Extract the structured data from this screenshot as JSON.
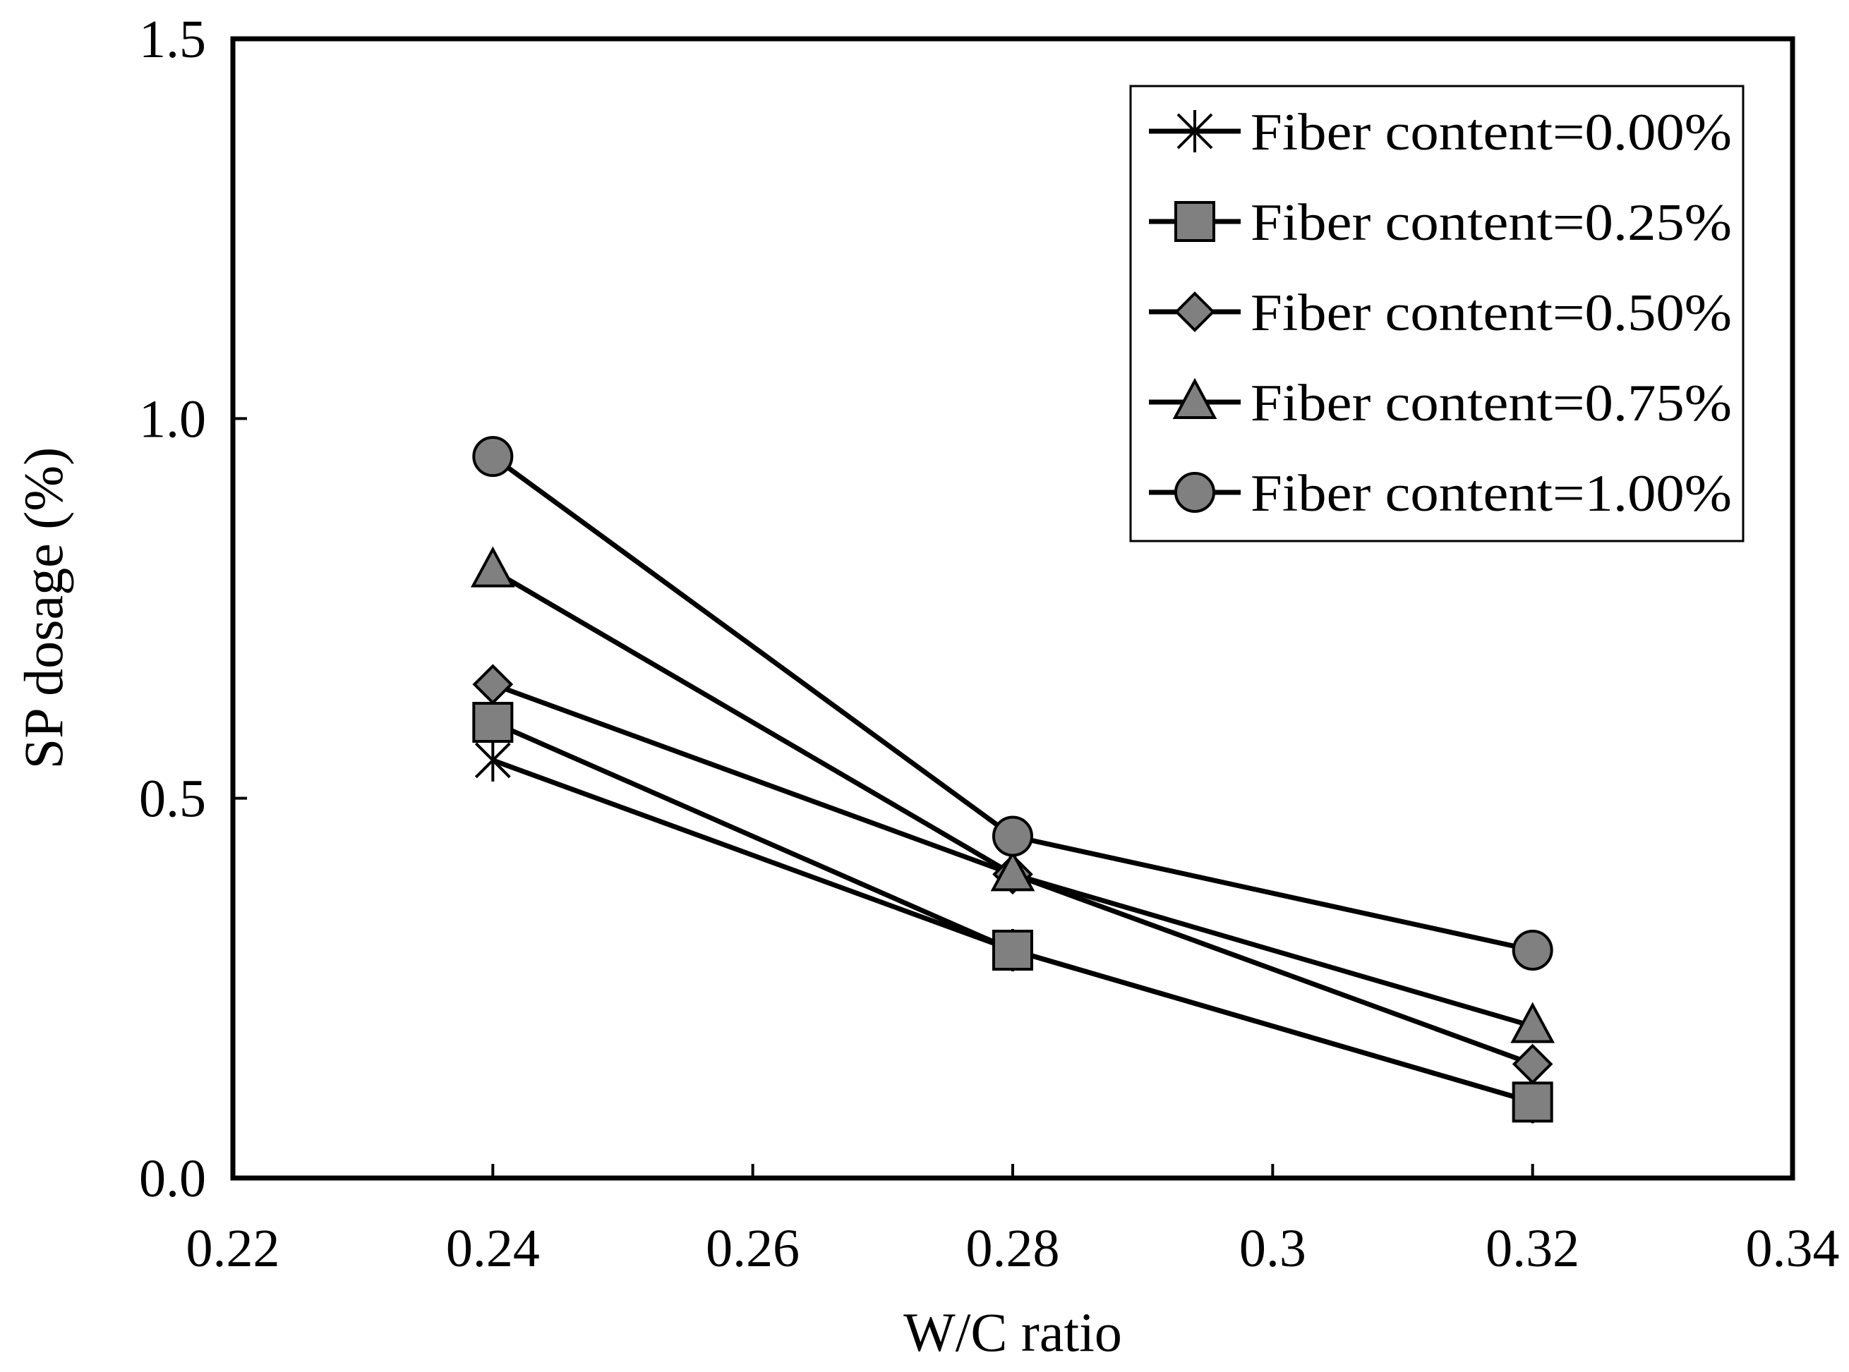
{
  "chart_data": {
    "type": "line",
    "title": "",
    "xlabel": "W/C ratio",
    "ylabel": "SP dosage (%)",
    "xlim": [
      0.22,
      0.34
    ],
    "ylim": [
      0.0,
      1.5
    ],
    "x_ticks": [
      0.22,
      0.24,
      0.26,
      0.28,
      0.3,
      0.32,
      0.34
    ],
    "x_tick_labels": [
      "0.22",
      "0.24",
      "0.26",
      "0.28",
      "0.3",
      "0.32",
      "0.34"
    ],
    "y_ticks": [
      0.0,
      0.5,
      1.0,
      1.5
    ],
    "y_tick_labels": [
      "0.0",
      "0.5",
      "1.0",
      "1.5"
    ],
    "grid": false,
    "legend_position": "top-right",
    "colors": {
      "line": "#000000",
      "marker_fill": "#808080",
      "background": "#ffffff"
    },
    "series": [
      {
        "name": "Fiber content=0.00%",
        "marker": "asterisk",
        "x": [
          0.24,
          0.28,
          0.32
        ],
        "y": [
          0.55,
          0.3,
          0.1
        ]
      },
      {
        "name": "Fiber content=0.25%",
        "marker": "square",
        "x": [
          0.24,
          0.28,
          0.32
        ],
        "y": [
          0.6,
          0.3,
          0.1
        ]
      },
      {
        "name": "Fiber content=0.50%",
        "marker": "diamond",
        "x": [
          0.24,
          0.28,
          0.32
        ],
        "y": [
          0.65,
          0.4,
          0.15
        ]
      },
      {
        "name": "Fiber content=0.75%",
        "marker": "triangle",
        "x": [
          0.24,
          0.28,
          0.32
        ],
        "y": [
          0.8,
          0.4,
          0.2
        ]
      },
      {
        "name": "Fiber content=1.00%",
        "marker": "circle",
        "x": [
          0.24,
          0.28,
          0.32
        ],
        "y": [
          0.95,
          0.45,
          0.3
        ]
      }
    ]
  }
}
